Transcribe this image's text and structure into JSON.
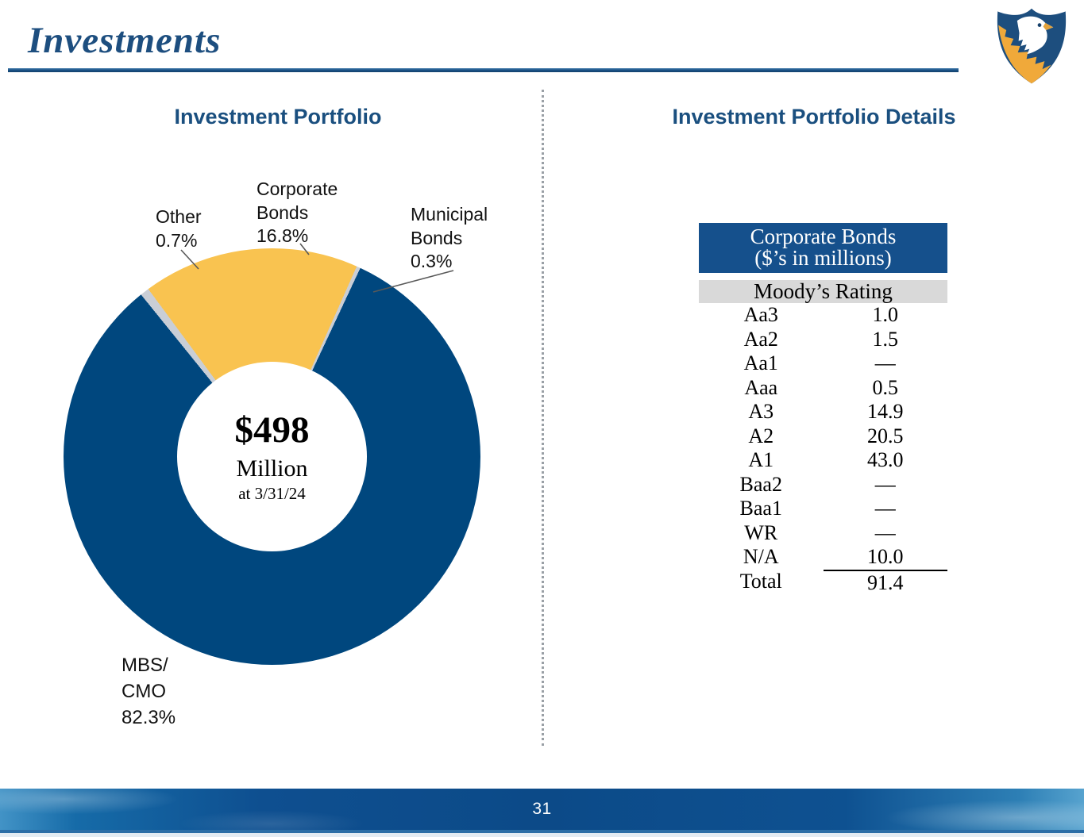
{
  "slide": {
    "title": "Investments",
    "page_number": "31"
  },
  "left_panel": {
    "heading": "Investment Portfolio"
  },
  "right_panel": {
    "heading": "Investment Portfolio Details",
    "table": {
      "title_line1": "Corporate Bonds",
      "title_line2": "($’s in millions)",
      "subheader": "Moody’s Rating",
      "rows": [
        {
          "rating": "Aa3",
          "value": "1.0"
        },
        {
          "rating": "Aa2",
          "value": "1.5"
        },
        {
          "rating": "Aa1",
          "value": "—"
        },
        {
          "rating": "Aaa",
          "value": "0.5"
        },
        {
          "rating": "A3",
          "value": "14.9"
        },
        {
          "rating": "A2",
          "value": "20.5"
        },
        {
          "rating": "A1",
          "value": "43.0"
        },
        {
          "rating": "Baa2",
          "value": "—"
        },
        {
          "rating": "Baa1",
          "value": "—"
        },
        {
          "rating": "WR",
          "value": "—"
        },
        {
          "rating": "N/A",
          "value": "10.0"
        }
      ],
      "total": {
        "rating": "Total",
        "value": "91.4"
      }
    }
  },
  "chart_data": [
    {
      "type": "pie",
      "title": "Investment Portfolio",
      "categories": [
        "MBS/CMO",
        "Corporate Bonds",
        "Other",
        "Municipal Bonds"
      ],
      "values": [
        82.3,
        16.8,
        0.7,
        0.3
      ],
      "center_label": {
        "value": "$498",
        "unit": "Million",
        "as_of": "at 3/31/24"
      },
      "labels": {
        "corporate": "Corporate\nBonds\n16.8%",
        "municipal": "Municipal\nBonds\n0.3%",
        "other": "Other\n0.7%",
        "mbs": "MBS/\nCMO\n82.3%"
      },
      "segments": [
        {
          "name": "Municipal Bonds",
          "pct": 0.3,
          "color": "#c9ced6"
        },
        {
          "name": "MBS/CMO",
          "pct": 82.3,
          "color": "#00477e"
        },
        {
          "name": "Other",
          "pct": 0.7,
          "color": "#c9ced6"
        },
        {
          "name": "Corporate Bonds",
          "pct": 16.8,
          "color": "#f9c350"
        }
      ],
      "start_angle_deg": 24,
      "donut_hole_ratio": 0.45,
      "legend": "none"
    },
    {
      "type": "table",
      "title": "Corporate Bonds ($’s in millions)",
      "columns": [
        "Moody’s Rating"
      ],
      "rows": [
        [
          "Aa3",
          "1.0"
        ],
        [
          "Aa2",
          "1.5"
        ],
        [
          "Aa1",
          "—"
        ],
        [
          "Aaa",
          "0.5"
        ],
        [
          "A3",
          "14.9"
        ],
        [
          "A2",
          "20.5"
        ],
        [
          "A1",
          "43.0"
        ],
        [
          "Baa2",
          "—"
        ],
        [
          "Baa1",
          "—"
        ],
        [
          "WR",
          "—"
        ],
        [
          "N/A",
          "10.0"
        ],
        [
          "Total",
          "91.4"
        ]
      ]
    }
  ],
  "colors": {
    "heading_navy": "#1d4e7f",
    "donut_blue": "#00477e",
    "gold": "#f9c350",
    "sliver_gray": "#c9ced6",
    "table_header_bg": "#15508c",
    "subheader_bg": "#d9d9d9"
  }
}
